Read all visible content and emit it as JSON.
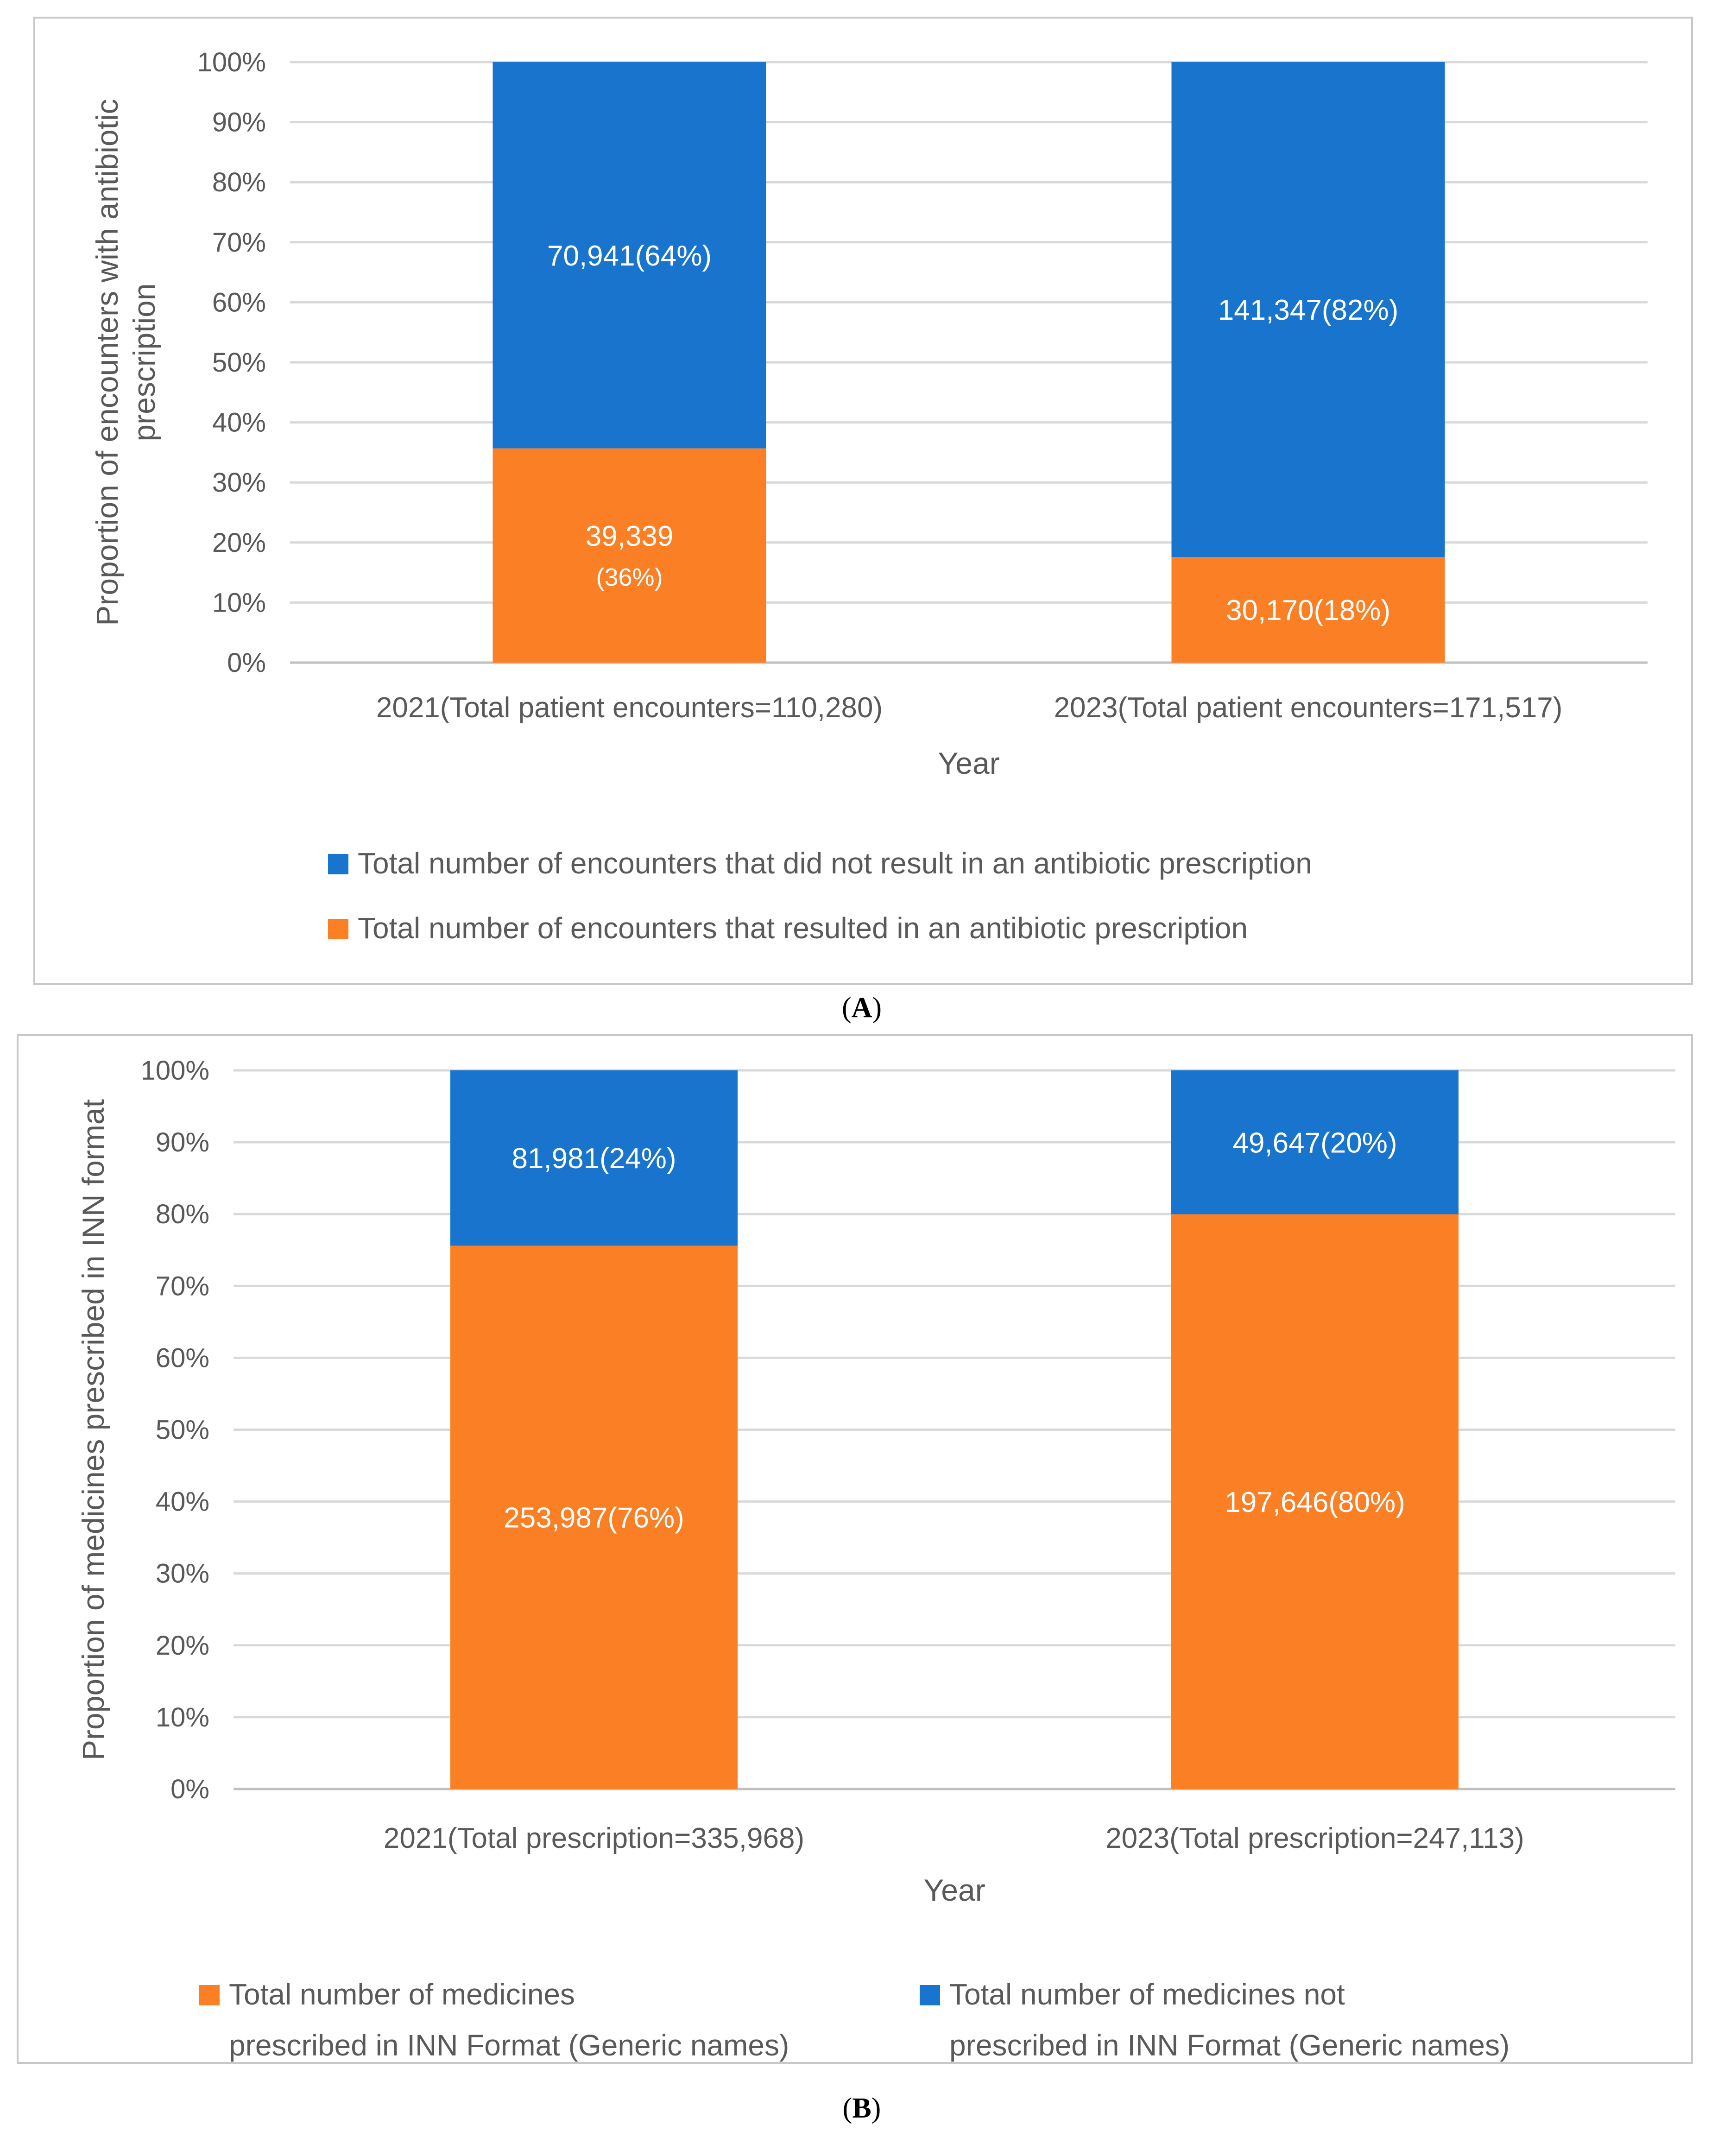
{
  "chart_data": [
    {
      "type": "bar",
      "stacked": "percent",
      "panel_label": "A",
      "categories": [
        "2021(Total patient encounters=110,280)",
        "2023(Total patient encounters=171,517)"
      ],
      "xlabel": "Year",
      "ylabel": "Proportion of encounters with antibiotic prescription",
      "ylim": [
        0,
        100
      ],
      "yticks": [
        "0%",
        "10%",
        "20%",
        "30%",
        "40%",
        "50%",
        "60%",
        "70%",
        "80%",
        "90%",
        "100%"
      ],
      "grid": true,
      "legend_position": "bottom",
      "series": [
        {
          "name": "Total number of encounters that resulted in an antibiotic prescription",
          "color": "#fb7f24",
          "values": [
            35.67,
            17.59
          ],
          "labels": [
            [
              "39,339",
              "(36%)"
            ],
            [
              "30,170(18%)"
            ]
          ]
        },
        {
          "name": "Total number of encounters that did not result in an antibiotic prescription",
          "color": "#1874cd",
          "values": [
            64.33,
            82.41
          ],
          "labels": [
            [
              "70,941(64%)"
            ],
            [
              "141,347(82%)"
            ]
          ]
        }
      ],
      "legend_order": [
        1,
        0
      ]
    },
    {
      "type": "bar",
      "stacked": "percent",
      "panel_label": "B",
      "categories": [
        "2021(Total prescription=335,968)",
        "2023(Total prescription=247,113)"
      ],
      "xlabel": "Year",
      "ylabel": "Proportion of medicines prescribed in INN format",
      "ylim": [
        0,
        100
      ],
      "yticks": [
        "0%",
        "10%",
        "20%",
        "30%",
        "40%",
        "50%",
        "60%",
        "70%",
        "80%",
        "90%",
        "100%"
      ],
      "grid": true,
      "legend_position": "bottom",
      "series": [
        {
          "name": "Total number of medicines prescribed in INN Format (Generic names)",
          "legend_lines": [
            "Total number of medicines",
            "prescribed in INN Format (Generic names)"
          ],
          "color": "#fb7f24",
          "values": [
            75.6,
            79.98
          ],
          "labels": [
            [
              "253,987(76%)"
            ],
            [
              "197,646(80%)"
            ]
          ]
        },
        {
          "name": "Total number of medicines not prescribed in INN Format (Generic names)",
          "legend_lines": [
            "Total number of medicines not",
            "prescribed in INN Format (Generic names)"
          ],
          "color": "#1874cd",
          "values": [
            24.4,
            20.02
          ],
          "labels": [
            [
              "81,981(24%)"
            ],
            [
              "49,647(20%)"
            ]
          ]
        }
      ],
      "legend_order": [
        0,
        1
      ]
    }
  ]
}
